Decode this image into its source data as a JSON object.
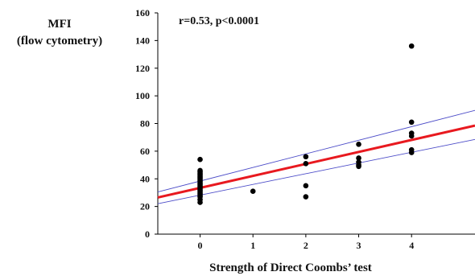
{
  "chart_data": {
    "type": "scatter",
    "title": "",
    "ylabel_lines": [
      "MFI",
      "(flow cytometry)"
    ],
    "xlabel": "Strength of Direct Coombs’ test",
    "annotation": "r=0.53, p<0.0001",
    "xlim": [
      -0.8,
      5.2
    ],
    "ylim": [
      0,
      160
    ],
    "x_ticks": [
      0,
      1,
      2,
      3,
      4
    ],
    "y_ticks": [
      0,
      20,
      40,
      60,
      80,
      100,
      120,
      140,
      160
    ],
    "grid": false,
    "points": [
      {
        "x": 0,
        "y": 54
      },
      {
        "x": 0,
        "y": 46
      },
      {
        "x": 0,
        "y": 45
      },
      {
        "x": 0,
        "y": 44
      },
      {
        "x": 0,
        "y": 43
      },
      {
        "x": 0,
        "y": 42
      },
      {
        "x": 0,
        "y": 41
      },
      {
        "x": 0,
        "y": 40
      },
      {
        "x": 0,
        "y": 39
      },
      {
        "x": 0,
        "y": 38
      },
      {
        "x": 0,
        "y": 37
      },
      {
        "x": 0,
        "y": 36
      },
      {
        "x": 0,
        "y": 35
      },
      {
        "x": 0,
        "y": 34
      },
      {
        "x": 0,
        "y": 33
      },
      {
        "x": 0,
        "y": 32
      },
      {
        "x": 0,
        "y": 31
      },
      {
        "x": 0,
        "y": 30
      },
      {
        "x": 0,
        "y": 29
      },
      {
        "x": 0,
        "y": 28
      },
      {
        "x": 0,
        "y": 27
      },
      {
        "x": 0,
        "y": 25
      },
      {
        "x": 0,
        "y": 23
      },
      {
        "x": 1,
        "y": 31
      },
      {
        "x": 2,
        "y": 56
      },
      {
        "x": 2,
        "y": 51
      },
      {
        "x": 2,
        "y": 35
      },
      {
        "x": 2,
        "y": 27
      },
      {
        "x": 3,
        "y": 65
      },
      {
        "x": 3,
        "y": 55
      },
      {
        "x": 3,
        "y": 52
      },
      {
        "x": 3,
        "y": 50
      },
      {
        "x": 3,
        "y": 49
      },
      {
        "x": 4,
        "y": 136
      },
      {
        "x": 4,
        "y": 81
      },
      {
        "x": 4,
        "y": 73
      },
      {
        "x": 4,
        "y": 71
      },
      {
        "x": 4,
        "y": 61
      },
      {
        "x": 4,
        "y": 59
      }
    ],
    "regression_line": {
      "color": "#e8191f",
      "x": [
        -0.8,
        5.2
      ],
      "y": [
        26.5,
        78.5
      ]
    },
    "confidence_upper": {
      "color": "#4c4cc8",
      "x": [
        -0.8,
        5.2
      ],
      "y": [
        30.5,
        89.5
      ]
    },
    "confidence_lower": {
      "color": "#4c4cc8",
      "x": [
        -0.8,
        5.2
      ],
      "y": [
        22.0,
        68.5
      ]
    },
    "point_color": "#000000"
  }
}
